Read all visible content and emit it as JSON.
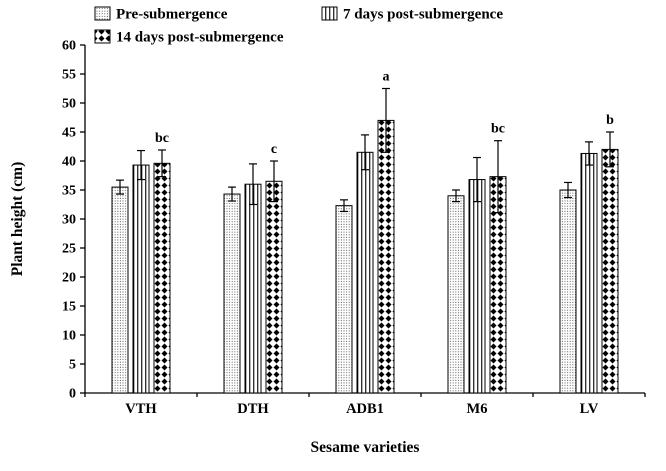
{
  "chart_data": {
    "type": "bar",
    "title": "",
    "xlabel": "Sesame varieties",
    "ylabel": "Plant height (cm)",
    "ylim": [
      0,
      60
    ],
    "ytick_step": 5,
    "grid": false,
    "legend_position": "top",
    "categories": [
      "VTH",
      "DTH",
      "ADB1",
      "M6",
      "LV"
    ],
    "series": [
      {
        "name": "Pre-submergence",
        "pattern": "dots",
        "values": [
          35.5,
          34.3,
          32.3,
          34.0,
          35.0
        ],
        "errors": [
          1.2,
          1.2,
          1.0,
          1.0,
          1.3
        ]
      },
      {
        "name": "7 days post-submergence",
        "pattern": "vlines",
        "values": [
          39.3,
          36.0,
          41.5,
          36.8,
          41.3
        ],
        "errors": [
          2.5,
          3.5,
          3.0,
          3.8,
          2.0
        ]
      },
      {
        "name": "14 days post-submergence",
        "pattern": "diamonds",
        "values": [
          39.6,
          36.5,
          47.0,
          37.3,
          42.0
        ],
        "errors": [
          2.3,
          3.5,
          5.5,
          6.2,
          3.0
        ]
      }
    ],
    "annotations": [
      {
        "category": "VTH",
        "series": 2,
        "label": "bc"
      },
      {
        "category": "DTH",
        "series": 2,
        "label": "c"
      },
      {
        "category": "ADB1",
        "series": 2,
        "label": "a"
      },
      {
        "category": "M6",
        "series": 2,
        "label": "bc"
      },
      {
        "category": "LV",
        "series": 2,
        "label": "b"
      }
    ],
    "colors": {
      "axis": "#000000",
      "bar_stroke": "#000000",
      "error_bar": "#000000",
      "background": "#ffffff"
    }
  }
}
